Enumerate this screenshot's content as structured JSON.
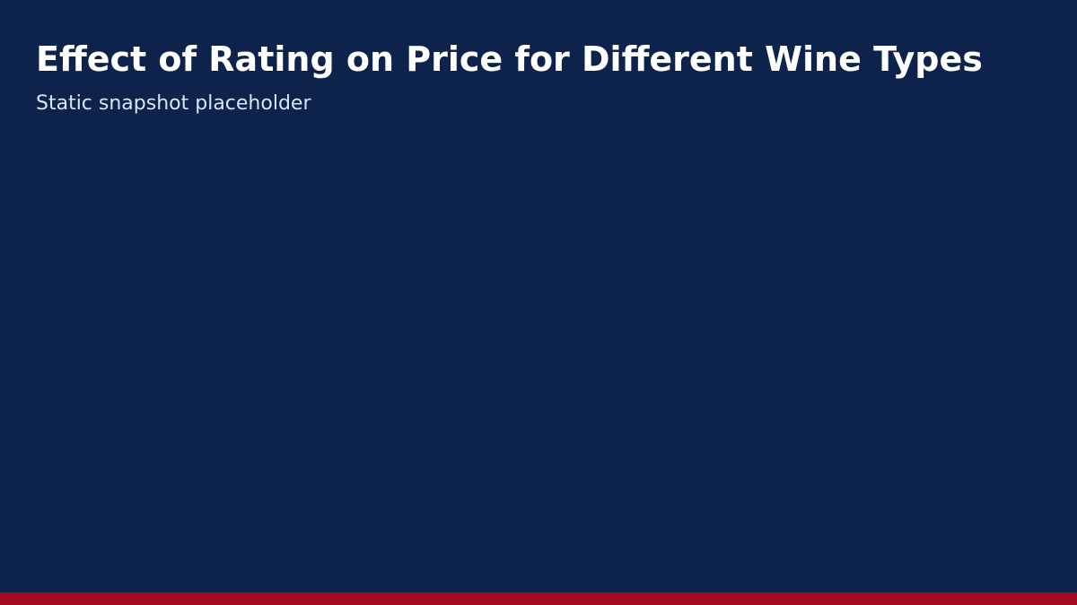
{
  "header": {
    "title": "Effect of Rating on Price for Different Wine Types",
    "subtitle": "Static snapshot placeholder"
  },
  "colors": {
    "background": "#0d234b",
    "title_text": "#ffffff",
    "subtitle_text": "#d8e4f4",
    "accent_bar": "#a50a1f"
  }
}
